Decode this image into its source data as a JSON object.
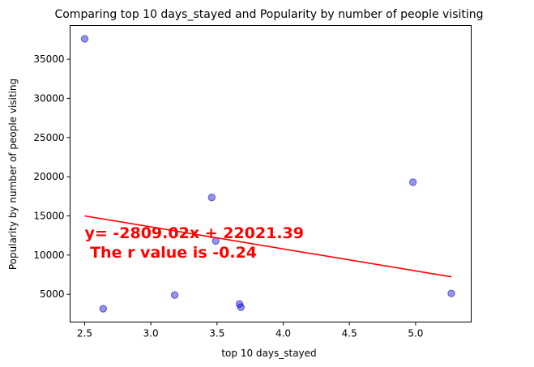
{
  "chart_data": {
    "type": "scatter",
    "title": "Comparing top 10 days_stayed and  Popularity by number of people visiting",
    "xlabel": "top 10 days_stayed",
    "ylabel": "Popularity by number of people visiting",
    "xlim": [
      2.39,
      5.42
    ],
    "ylim": [
      1450,
      39300
    ],
    "xticks": [
      {
        "value": 2.5,
        "label": "2.5"
      },
      {
        "value": 3.0,
        "label": "3.0"
      },
      {
        "value": 3.5,
        "label": "3.5"
      },
      {
        "value": 4.0,
        "label": "4.0"
      },
      {
        "value": 4.5,
        "label": "4.5"
      },
      {
        "value": 5.0,
        "label": "5.0"
      }
    ],
    "yticks": [
      {
        "value": 5000,
        "label": "5000"
      },
      {
        "value": 10000,
        "label": "10000"
      },
      {
        "value": 15000,
        "label": "15000"
      },
      {
        "value": 20000,
        "label": "20000"
      },
      {
        "value": 25000,
        "label": "25000"
      },
      {
        "value": 30000,
        "label": "30000"
      },
      {
        "value": 35000,
        "label": "35000"
      }
    ],
    "points": [
      {
        "x": 2.5,
        "y": 37600
      },
      {
        "x": 2.64,
        "y": 3150
      },
      {
        "x": 3.18,
        "y": 4900
      },
      {
        "x": 3.46,
        "y": 17350
      },
      {
        "x": 3.49,
        "y": 11800
      },
      {
        "x": 3.67,
        "y": 3750
      },
      {
        "x": 3.68,
        "y": 3350
      },
      {
        "x": 4.98,
        "y": 19300
      },
      {
        "x": 5.27,
        "y": 5100
      }
    ],
    "regression": {
      "slope": -2809.02,
      "intercept": 22021.39,
      "x_range": [
        2.5,
        5.27
      ]
    },
    "annotation_lines": [
      "y= -2809.02x + 22021.39",
      " The r value is -0.24"
    ],
    "grid": false,
    "colors": {
      "points": "#0000cc",
      "line": "#ff0000",
      "annotation": "#ff0000"
    }
  }
}
